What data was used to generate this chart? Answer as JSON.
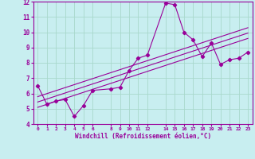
{
  "xlabel": "Windchill (Refroidissement éolien,°C)",
  "bg_color": "#c8eef0",
  "line_color": "#990099",
  "grid_color": "#a8d8cc",
  "x_data": [
    0,
    1,
    2,
    3,
    4,
    5,
    6,
    8,
    9,
    10,
    11,
    12,
    14,
    15,
    16,
    17,
    18,
    19,
    20,
    21,
    22,
    23
  ],
  "y_main": [
    6.5,
    5.3,
    5.5,
    5.6,
    4.5,
    5.2,
    6.2,
    6.3,
    6.4,
    7.5,
    8.3,
    8.5,
    11.9,
    11.8,
    10.0,
    9.5,
    8.4,
    9.3,
    7.9,
    8.2,
    8.3,
    8.7
  ],
  "ylim": [
    4,
    12
  ],
  "xlim": [
    -0.5,
    23.5
  ],
  "yticks": [
    4,
    5,
    6,
    7,
    8,
    9,
    10,
    11,
    12
  ],
  "xticks": [
    0,
    1,
    2,
    3,
    4,
    5,
    6,
    8,
    9,
    10,
    11,
    12,
    14,
    15,
    16,
    17,
    18,
    19,
    20,
    21,
    22,
    23
  ],
  "trend_offsets": [
    -0.35,
    0.0,
    0.35
  ],
  "trend_x_start": 0,
  "trend_x_end": 23
}
